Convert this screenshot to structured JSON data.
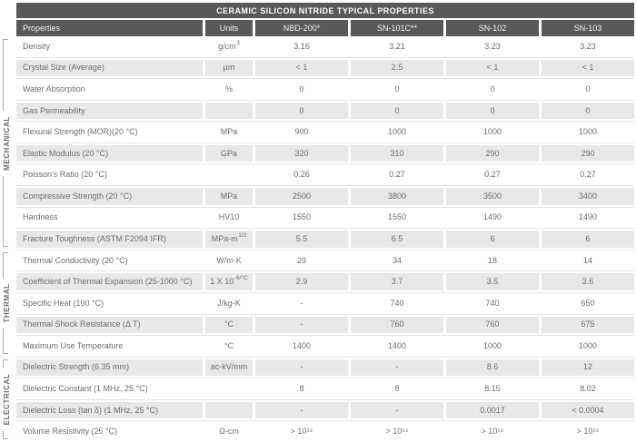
{
  "title": "CERAMIC SILICON NITRIDE TYPICAL PROPERTIES",
  "columns": {
    "properties": "Properties",
    "units": "Units",
    "materials": [
      "NBD-200*",
      "SN-101C**",
      "SN-102",
      "SN-103"
    ]
  },
  "colors": {
    "header_bg": "#58595b",
    "header_text": "#ffffff",
    "alt_row_bg": "#e8e8e9",
    "body_text": "#6d6e71",
    "bracket_line": "#a7a9ac",
    "row_hairline": "#e5e5e6"
  },
  "groups": [
    {
      "label": "MECHANICAL",
      "rows": [
        {
          "property": "Density",
          "units": "g/cm",
          "units_sup": "3",
          "values": [
            "3.16",
            "3.21",
            "3.23",
            "3.23"
          ]
        },
        {
          "property": "Crystal Size (Average)",
          "units": "µm",
          "units_sup": "",
          "values": [
            "< 1",
            "2.5",
            "< 1",
            "< 1"
          ]
        },
        {
          "property": "Water Absorption",
          "units": "%",
          "units_sup": "",
          "values": [
            "0",
            "0",
            "0",
            "0"
          ]
        },
        {
          "property": "Gas Permeability",
          "units": "",
          "units_sup": "",
          "values": [
            "0",
            "0",
            "0",
            "0"
          ]
        },
        {
          "property": "Flexural Strength (MOR)(20 °C)",
          "units": "MPa",
          "units_sup": "",
          "values": [
            "900",
            "1000",
            "1000",
            "1000"
          ]
        },
        {
          "property": "Elastic Modulus (20 °C)",
          "units": "GPa",
          "units_sup": "",
          "values": [
            "320",
            "310",
            "290",
            "290"
          ]
        },
        {
          "property": "Poisson's Ratio (20 °C)",
          "units": "",
          "units_sup": "",
          "values": [
            "0.26",
            "0.27",
            "0.27",
            "0.27"
          ]
        },
        {
          "property": "Compressive Strength (20 °C)",
          "units": "MPa",
          "units_sup": "",
          "values": [
            "2500",
            "3800",
            "3500",
            "3400"
          ]
        },
        {
          "property": "Hardness",
          "units": "HV10",
          "units_sup": "",
          "values": [
            "1550",
            "1550",
            "1490",
            "1490"
          ]
        },
        {
          "property": "Fracture Toughness (ASTM F2094 IFR)",
          "units": "MPa-m",
          "units_sup": "1/2",
          "values": [
            "5.5",
            "6.5",
            "6",
            "6"
          ]
        }
      ]
    },
    {
      "label": "THERMAL",
      "rows": [
        {
          "property": "Thermal Conductivity (20 °C)",
          "units": "W/m-K",
          "units_sup": "",
          "values": [
            "29",
            "34",
            "18",
            "14"
          ]
        },
        {
          "property": "Coefficient of Thermal Expansion (25-1000 °C)",
          "units": "1 X 10",
          "units_sup": "-6/°C",
          "values": [
            "2.9",
            "3.7",
            "3.5",
            "3.6"
          ]
        },
        {
          "property": "Specific Heat (100 °C)",
          "units": "J/kg-K",
          "units_sup": "",
          "values": [
            "-",
            "740",
            "740",
            "650"
          ]
        },
        {
          "property": "Thermal Shock Resistance (Δ T)",
          "units": "°C",
          "units_sup": "",
          "values": [
            "-",
            "760",
            "760",
            "675"
          ]
        },
        {
          "property": "Maximum Use Temperature",
          "units": "°C",
          "units_sup": "",
          "values": [
            "1400",
            "1400",
            "1000",
            "1000"
          ]
        }
      ]
    },
    {
      "label": "ELECTRICAL",
      "rows": [
        {
          "property": "Dielectric Strength (6.35 mm)",
          "units": "ac-kV/mm",
          "units_sup": "",
          "values": [
            "-",
            "-",
            "8.6",
            "12"
          ]
        },
        {
          "property": "Dielectric Constant (1 MHz, 25 °C)",
          "units": "",
          "units_sup": "",
          "values": [
            "8",
            "8",
            "8.15",
            "8.02"
          ]
        },
        {
          "property": "Dielectric Loss (tan δ) (1 MHz, 25 °C)",
          "units": "",
          "units_sup": "",
          "values": [
            "-",
            "-",
            "0.0017",
            "< 0.0004"
          ]
        },
        {
          "property": "Volume Resistivity (25 °C)",
          "units": "Ω-cm",
          "units_sup": "",
          "values": [
            "> 10¹⁴",
            "> 10¹⁴",
            "> 10¹⁴",
            "> 10¹⁴"
          ]
        }
      ]
    }
  ]
}
